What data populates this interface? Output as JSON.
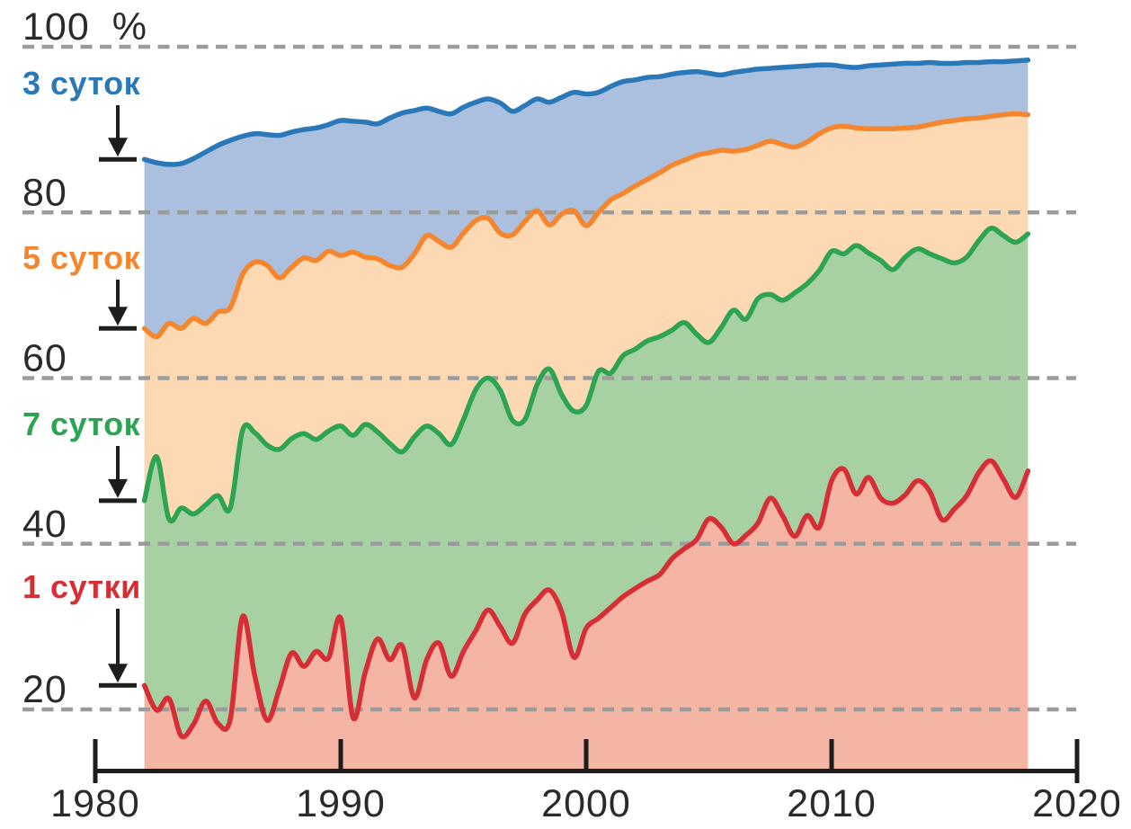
{
  "chart": {
    "background": "#ffffff",
    "palette": {
      "grid": "#9b9b9b",
      "axis": "#1d1d1b",
      "text": "#2b2a29"
    }
  },
  "chart_data": {
    "type": "area",
    "title": "",
    "xlabel": "",
    "ylabel": "",
    "y_unit": "%",
    "grid": "horizontal dashed",
    "legend_position": "left side labels with down arrows pointing to each line start",
    "xlim": [
      1980,
      2020
    ],
    "ylim": [
      13,
      101
    ],
    "x_ticks": [
      1980,
      1990,
      2000,
      2010,
      2020
    ],
    "x_tick_labels": [
      "1980",
      "1990",
      "2000",
      "2010",
      "2020"
    ],
    "y_ticks": [
      100,
      80,
      60,
      40,
      20
    ],
    "y_tick_labels": [
      "100 %",
      "80",
      "60",
      "40",
      "20"
    ],
    "x": [
      1982,
      1982.5,
      1983,
      1983.5,
      1984,
      1984.5,
      1985,
      1985.5,
      1986,
      1986.5,
      1987,
      1987.5,
      1988,
      1988.5,
      1989,
      1989.5,
      1990,
      1990.5,
      1991,
      1991.5,
      1992,
      1992.5,
      1993,
      1993.5,
      1994,
      1994.5,
      1995,
      1995.5,
      1996,
      1996.5,
      1997,
      1997.5,
      1998,
      1998.5,
      1999,
      1999.5,
      2000,
      2000.5,
      2001,
      2001.5,
      2002,
      2002.5,
      2003,
      2003.5,
      2004,
      2004.5,
      2005,
      2005.5,
      2006,
      2006.5,
      2007,
      2007.5,
      2008,
      2008.5,
      2009,
      2009.5,
      2010,
      2010.5,
      2011,
      2011.5,
      2012,
      2012.5,
      2013,
      2013.5,
      2014,
      2014.5,
      2015,
      2015.5,
      2016,
      2016.5,
      2017,
      2017.5,
      2018
    ],
    "series": [
      {
        "name": "3 суток",
        "label": "3 суток",
        "color": "#2a78b8",
        "fill": "#abc0de",
        "values": [
          86.4,
          86.0,
          85.8,
          85.9,
          86.5,
          87.3,
          88.1,
          88.7,
          89.2,
          89.5,
          89.4,
          89.3,
          89.7,
          90.0,
          90.2,
          90.6,
          91.1,
          91.0,
          90.9,
          90.7,
          91.4,
          92.0,
          92.3,
          92.6,
          92.2,
          91.9,
          92.7,
          93.3,
          93.7,
          93.2,
          92.2,
          92.9,
          93.7,
          93.3,
          93.9,
          94.5,
          94.3,
          94.5,
          95.2,
          95.8,
          96.0,
          96.3,
          96.4,
          96.7,
          96.9,
          97.0,
          96.8,
          96.6,
          96.9,
          97.1,
          97.3,
          97.4,
          97.5,
          97.6,
          97.7,
          97.8,
          97.8,
          97.6,
          97.5,
          97.7,
          97.8,
          97.9,
          98.0,
          98.0,
          98.1,
          98.0,
          98.0,
          98.1,
          98.1,
          98.2,
          98.2,
          98.3,
          98.4
        ]
      },
      {
        "name": "5 суток",
        "label": "5 суток",
        "color": "#f5862d",
        "fill": "#fcd9b2",
        "values": [
          66.0,
          65.0,
          66.6,
          66.0,
          67.2,
          66.6,
          68.0,
          68.5,
          72.5,
          74.0,
          73.6,
          72.1,
          73.4,
          74.5,
          74.2,
          75.3,
          74.8,
          75.2,
          74.6,
          74.4,
          73.6,
          73.4,
          75.0,
          77.2,
          76.5,
          75.8,
          77.5,
          79.0,
          79.3,
          77.5,
          77.3,
          78.9,
          80.2,
          78.5,
          79.8,
          80.2,
          78.4,
          80.0,
          81.5,
          82.3,
          83.2,
          84.0,
          84.8,
          85.7,
          86.3,
          86.9,
          87.2,
          87.5,
          87.4,
          87.6,
          88.1,
          88.6,
          88.2,
          87.9,
          88.5,
          89.5,
          90.2,
          90.4,
          90.2,
          90.1,
          90.1,
          90.1,
          90.2,
          90.3,
          90.6,
          90.9,
          91.1,
          91.3,
          91.4,
          91.6,
          91.8,
          91.9,
          91.8
        ]
      },
      {
        "name": "7 суток",
        "label": "7 суток",
        "color": "#2ca452",
        "fill": "#a7d0a3",
        "values": [
          45.2,
          50.5,
          43.0,
          44.3,
          43.6,
          44.7,
          45.8,
          44.3,
          53.7,
          53.4,
          51.9,
          51.4,
          52.7,
          53.3,
          52.6,
          53.6,
          54.2,
          53.1,
          54.4,
          53.5,
          52.1,
          51.1,
          52.9,
          54.2,
          53.3,
          52.0,
          55.0,
          58.6,
          60.0,
          58.5,
          54.9,
          55.0,
          59.2,
          61.1,
          58.0,
          56.0,
          56.7,
          60.8,
          60.6,
          62.7,
          63.5,
          64.5,
          65.0,
          65.8,
          66.7,
          65.3,
          64.3,
          66.1,
          68.2,
          67.1,
          69.6,
          70.1,
          69.4,
          70.3,
          71.4,
          73.0,
          75.3,
          75.0,
          76.0,
          75.1,
          74.2,
          73.1,
          74.6,
          75.6,
          75.0,
          74.4,
          73.9,
          74.6,
          76.6,
          78.1,
          77.2,
          76.4,
          77.4
        ]
      },
      {
        "name": "1 сутки",
        "label": "1 сутки",
        "color": "#d62e34",
        "fill": "#f4b5a5",
        "values": [
          22.9,
          19.9,
          21.3,
          16.8,
          18.2,
          21.0,
          18.3,
          18.8,
          31.2,
          24.0,
          18.7,
          22.5,
          26.8,
          25.2,
          27.0,
          26.2,
          31.0,
          19.0,
          24.5,
          28.5,
          26.0,
          27.7,
          21.4,
          26.0,
          28.0,
          24.0,
          27.0,
          29.5,
          32.0,
          30.0,
          28.0,
          31.5,
          33.2,
          34.4,
          31.8,
          26.3,
          29.8,
          31.0,
          32.3,
          33.6,
          34.6,
          35.5,
          36.3,
          38.2,
          39.4,
          40.5,
          43.0,
          42.0,
          40.0,
          41.0,
          42.5,
          45.5,
          43.4,
          40.9,
          43.4,
          42.0,
          47.6,
          49.0,
          46.0,
          48.0,
          45.5,
          44.9,
          45.9,
          47.6,
          46.3,
          42.9,
          44.2,
          45.8,
          48.6,
          50.0,
          47.8,
          45.6,
          48.8
        ]
      }
    ]
  }
}
